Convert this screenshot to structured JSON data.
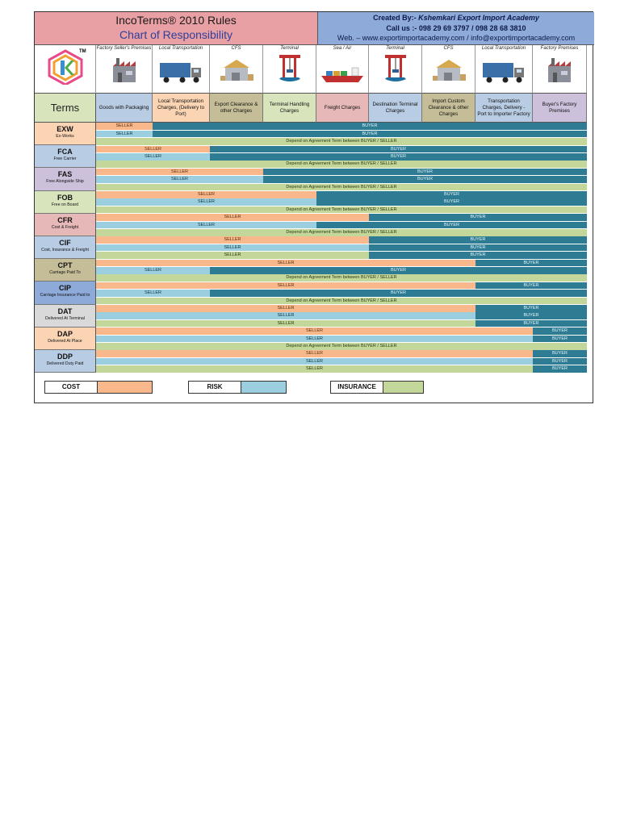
{
  "header": {
    "title_line1": "IncoTerms® 2010 Rules",
    "title_line2": "Chart of Responsibility",
    "created_by_prefix": "Created By:-",
    "created_by_name": "Kshemkari Export Import Academy",
    "call_line": "Call us :- 098 29 69 3797 / 098 28 68 3810",
    "web_line": "Web. – www.exportimportacademy.com / info@exportimportacademy.com",
    "logo_tm": "TM"
  },
  "stages": [
    {
      "label": "Factory Seller's Premises",
      "cost": "Goods with Packaging",
      "color": "#b8cce4",
      "icon": "factory-icon"
    },
    {
      "label": "Local Transportation",
      "cost": "Local Transportation Charges, (Delivery to Port)",
      "color": "#fbd4b4",
      "icon": "truck-icon"
    },
    {
      "label": "CFS",
      "cost": "Export Clearance & other Charges",
      "color": "#c4bd97",
      "icon": "warehouse-icon"
    },
    {
      "label": "Terminal",
      "cost": "Terminal Handling Charges",
      "color": "#d7e4bc",
      "icon": "crane-icon"
    },
    {
      "label": "Sea / Air",
      "cost": "Freight Charges",
      "color": "#e6b8b7",
      "icon": "ship-icon"
    },
    {
      "label": "Terminal",
      "cost": "Destination Terminal Charges",
      "color": "#b8cce4",
      "icon": "crane-icon"
    },
    {
      "label": "CFS",
      "cost": "Import Custom Clearance & other Charges",
      "color": "#c4bd97",
      "icon": "warehouse-icon"
    },
    {
      "label": "Local Transportation",
      "cost": "Transportation Charges, Delivery - Port to Importer Factory",
      "color": "#b8cce4",
      "icon": "truck-icon"
    },
    {
      "label": "Factory Premises",
      "cost": "Buyer's Factory Premises",
      "color": "#ccc0da",
      "icon": "factory-icon"
    }
  ],
  "terms_header": "Terms",
  "labels": {
    "seller": "SELLER",
    "buyer": "BUYER",
    "depend": "Depend on Agreement Term between BUYER / SELLER"
  },
  "terms": [
    {
      "code": "EXW",
      "full": "Ex-Works",
      "color": "#fbd4b4",
      "cost": 1,
      "risk": 1,
      "ins": null
    },
    {
      "code": "FCA",
      "full": "Free Carrier",
      "color": "#b8cce4",
      "cost": 2,
      "risk": 2,
      "ins": null
    },
    {
      "code": "FAS",
      "full": "Free Alongside Ship",
      "color": "#ccc0da",
      "cost": 3,
      "risk": 3,
      "ins": null
    },
    {
      "code": "FOB",
      "full": "Free on Board",
      "color": "#d7e4bc",
      "cost": 4,
      "risk": 4,
      "ins": null
    },
    {
      "code": "CFR",
      "full": "Cost & Freight",
      "color": "#e6b8b7",
      "cost": 5,
      "risk": 4,
      "ins": null
    },
    {
      "code": "CIF",
      "full": "Cost, Insurance & Freight",
      "color": "#b8cce4",
      "cost": 5,
      "risk": 5,
      "ins": 5
    },
    {
      "code": "CPT",
      "full": "Carriage Paid To",
      "color": "#c4bd97",
      "cost": 7,
      "risk": 2,
      "ins": null
    },
    {
      "code": "CIP",
      "full": "Carriage Insurance Paid to",
      "color": "#8eaad8",
      "cost": 7,
      "risk": 2,
      "ins": null
    },
    {
      "code": "DAT",
      "full": "Delivered At Terminal",
      "color": "#d9d9d9",
      "cost": 7,
      "risk": 7,
      "ins": 7
    },
    {
      "code": "DAP",
      "full": "Delivered At Place",
      "color": "#fbd4b4",
      "cost": 8,
      "risk": 8,
      "ins": null
    },
    {
      "code": "DDP",
      "full": "Delivered Duty Paid",
      "color": "#b8cce4",
      "cost": 8,
      "risk": 8,
      "ins": 8
    }
  ],
  "legend": [
    {
      "label": "COST",
      "color": "#f9b88c"
    },
    {
      "label": "RISK",
      "color": "#9bcfe0"
    },
    {
      "label": "INSURANCE",
      "color": "#c4d79b"
    }
  ]
}
